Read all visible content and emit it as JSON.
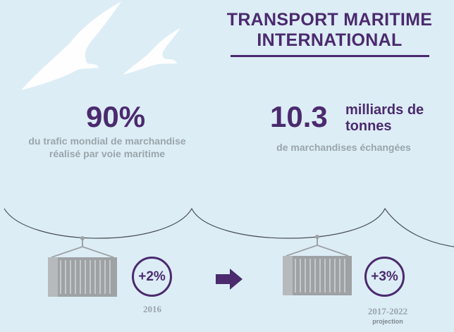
{
  "title": {
    "line1": "TRANSPORT MARITIME",
    "line2": "INTERNATIONAL"
  },
  "stats": {
    "left": {
      "value": "90%",
      "caption_line1": "du trafic mondial de marchandise",
      "caption_line2": "réalisé par voie maritime"
    },
    "right": {
      "value": "10.3",
      "unit_line1": "milliards de",
      "unit_line2": "tonnes",
      "caption": "de marchandises échangées"
    }
  },
  "growth": {
    "left": {
      "badge": "+2%",
      "year": "2016"
    },
    "right": {
      "badge": "+3%",
      "year": "2017-2022",
      "note": "projection"
    }
  },
  "colors": {
    "background": "#dcedf6",
    "accent": "#4b2a6e",
    "caption": "#9aa5ab",
    "container": "#9ea2a5",
    "bird": "#ffffff"
  },
  "icons": [
    "seagull-icon",
    "seagull-icon",
    "shipping-container-icon",
    "shipping-container-icon",
    "arrow-right-icon"
  ]
}
